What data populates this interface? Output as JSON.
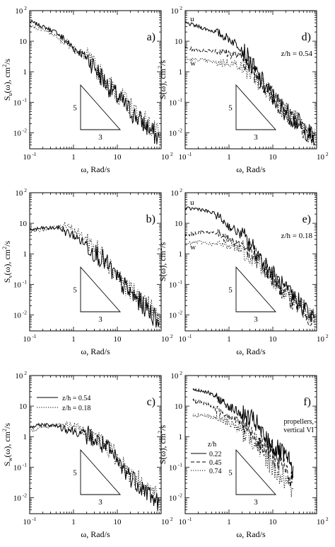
{
  "chart_data": [
    {
      "id": "a",
      "type": "line",
      "panel_label": "a)",
      "ylabel_parts": {
        "base": "S",
        "sub": "u",
        "rest": "(ω),  cm",
        "sup": "2",
        "end": "/s"
      },
      "xlabel": "ω, Rad/s",
      "xscale": "log",
      "yscale": "log",
      "xlim": [
        0.1,
        100
      ],
      "ylim": [
        0.003,
        100
      ],
      "x_ticks": [
        "10⁻¹",
        "1",
        "10",
        "10²"
      ],
      "y_ticks": [
        "10²",
        "10",
        "1",
        "10⁻¹",
        "10⁻²"
      ],
      "triangle": {
        "vertical": "5",
        "horizontal": "3"
      },
      "series": [
        {
          "style": "solid",
          "x": [
            0.1,
            0.2,
            0.4,
            1,
            2,
            3,
            5,
            10,
            20,
            50,
            90
          ],
          "y": [
            45,
            30,
            20,
            6,
            3,
            1.5,
            0.5,
            0.15,
            0.05,
            0.015,
            0.006
          ]
        },
        {
          "style": "dotted",
          "x": [
            0.1,
            0.2,
            0.4,
            1,
            2,
            3,
            5,
            10,
            20,
            50,
            90
          ],
          "y": [
            30,
            25,
            15,
            6,
            3,
            1.5,
            0.6,
            0.2,
            0.07,
            0.02,
            0.008
          ]
        }
      ]
    },
    {
      "id": "d",
      "type": "line",
      "panel_label": "d)",
      "ylabel_parts": {
        "base": "S",
        "sub": "",
        "rest": "(ω),  cm",
        "sup": "2",
        "end": "/s"
      },
      "xlabel": "ω, Rad/s",
      "xscale": "log",
      "yscale": "log",
      "xlim": [
        0.1,
        100
      ],
      "ylim": [
        0.003,
        100
      ],
      "x_ticks": [
        "10⁻¹",
        "1",
        "10",
        "10²"
      ],
      "y_ticks": [
        "10²",
        "10",
        "1",
        "10⁻¹",
        "10⁻²"
      ],
      "triangle": {
        "vertical": "5",
        "horizontal": "3"
      },
      "annotation": "z/h  =  0.54",
      "curve_labels": [
        {
          "text": "u",
          "x": 0.13,
          "y": 45
        },
        {
          "text": "v",
          "x": 0.6,
          "y": 4
        },
        {
          "text": "w",
          "x": 0.13,
          "y": 1.6
        }
      ],
      "series": [
        {
          "style": "solid",
          "x": [
            0.1,
            0.2,
            0.5,
            1,
            2,
            3,
            5,
            10,
            20,
            50,
            90
          ],
          "y": [
            40,
            30,
            20,
            12,
            6,
            2,
            0.6,
            0.15,
            0.05,
            0.015,
            0.006
          ]
        },
        {
          "style": "dashed",
          "x": [
            0.1,
            0.2,
            0.5,
            1,
            2,
            3,
            5,
            10,
            20,
            50,
            90
          ],
          "y": [
            6,
            5,
            5,
            4,
            3,
            1.5,
            0.6,
            0.15,
            0.05,
            0.015,
            0.006
          ]
        },
        {
          "style": "dotted",
          "x": [
            0.1,
            0.2,
            0.5,
            1,
            2,
            3,
            5,
            10,
            20,
            50,
            90
          ],
          "y": [
            2.5,
            2.5,
            2,
            2,
            1.5,
            1,
            0.5,
            0.15,
            0.05,
            0.015,
            0.006
          ]
        }
      ]
    },
    {
      "id": "b",
      "type": "line",
      "panel_label": "b)",
      "ylabel_parts": {
        "base": "S",
        "sub": "v",
        "rest": "(ω),  cm",
        "sup": "2",
        "end": "/s"
      },
      "xlabel": "ω, Rad/s",
      "xscale": "log",
      "yscale": "log",
      "xlim": [
        0.1,
        100
      ],
      "ylim": [
        0.003,
        100
      ],
      "x_ticks": [
        "10⁻¹",
        "1",
        "10",
        "10²"
      ],
      "y_ticks": [
        "10²",
        "10",
        "1",
        "10⁻¹",
        "10⁻²"
      ],
      "triangle": {
        "vertical": "5",
        "horizontal": "3"
      },
      "series": [
        {
          "style": "solid",
          "x": [
            0.1,
            0.2,
            0.5,
            0.7,
            1,
            2,
            5,
            10,
            20,
            50,
            90
          ],
          "y": [
            6,
            7,
            7,
            5,
            4,
            2,
            0.6,
            0.15,
            0.05,
            0.015,
            0.006
          ]
        },
        {
          "style": "dotted",
          "x": [
            0.1,
            0.2,
            0.5,
            0.7,
            1,
            2,
            5,
            10,
            20,
            50,
            90
          ],
          "y": [
            6,
            6,
            8,
            10,
            6,
            3,
            0.8,
            0.2,
            0.06,
            0.02,
            0.008
          ]
        }
      ]
    },
    {
      "id": "e",
      "type": "line",
      "panel_label": "e)",
      "ylabel_parts": {
        "base": "S",
        "sub": "",
        "rest": "(ω),  cm",
        "sup": "2",
        "end": "/s"
      },
      "xlabel": "ω, Rad/s",
      "xscale": "log",
      "yscale": "log",
      "xlim": [
        0.1,
        100
      ],
      "ylim": [
        0.003,
        100
      ],
      "x_ticks": [
        "10⁻¹",
        "1",
        "10",
        "10²"
      ],
      "y_ticks": [
        "10²",
        "10",
        "1",
        "10⁻¹",
        "10⁻²"
      ],
      "triangle": {
        "vertical": "5",
        "horizontal": "3"
      },
      "annotation": "z/h  =  0.18",
      "curve_labels": [
        {
          "text": "u",
          "x": 0.13,
          "y": 40
        },
        {
          "text": "v",
          "x": 0.7,
          "y": 3.5
        },
        {
          "text": "w",
          "x": 0.13,
          "y": 1.4
        }
      ],
      "series": [
        {
          "style": "solid",
          "x": [
            0.1,
            0.2,
            0.5,
            1,
            2,
            5,
            10,
            20,
            50,
            90
          ],
          "y": [
            30,
            30,
            20,
            8,
            4,
            0.8,
            0.2,
            0.06,
            0.02,
            0.006
          ]
        },
        {
          "style": "dashed",
          "x": [
            0.1,
            0.2,
            0.5,
            1,
            2,
            5,
            10,
            20,
            50,
            90
          ],
          "y": [
            4,
            5,
            5,
            3,
            2,
            0.6,
            0.15,
            0.05,
            0.015,
            0.006
          ]
        },
        {
          "style": "dotted",
          "x": [
            0.1,
            0.2,
            0.5,
            1,
            2,
            5,
            10,
            20,
            50,
            90
          ],
          "y": [
            2,
            2.5,
            2,
            2,
            1.5,
            0.5,
            0.15,
            0.05,
            0.015,
            0.006
          ]
        }
      ]
    },
    {
      "id": "c",
      "type": "line",
      "panel_label": "c)",
      "ylabel_parts": {
        "base": "S",
        "sub": "w",
        "rest": "(ω),  cm",
        "sup": "2",
        "end": "/s"
      },
      "xlabel": "ω, Rad/s",
      "xscale": "log",
      "yscale": "log",
      "xlim": [
        0.1,
        100
      ],
      "ylim": [
        0.003,
        100
      ],
      "x_ticks": [
        "10⁻¹",
        "1",
        "10",
        "10²"
      ],
      "y_ticks": [
        "10²",
        "10",
        "1",
        "10⁻¹",
        "10⁻²"
      ],
      "triangle": {
        "vertical": "5",
        "horizontal": "3"
      },
      "legend": [
        {
          "label": "z/h  =  0.54",
          "style": "solid"
        },
        {
          "label": "z/h  =  0.18",
          "style": "dotted"
        }
      ],
      "series": [
        {
          "style": "solid",
          "x": [
            0.1,
            0.2,
            0.5,
            1,
            2,
            3,
            5,
            10,
            20,
            50,
            90
          ],
          "y": [
            2,
            2.5,
            2.2,
            1.5,
            1.2,
            0.8,
            0.5,
            0.15,
            0.05,
            0.015,
            0.006
          ]
        },
        {
          "style": "dotted",
          "x": [
            0.1,
            0.2,
            0.5,
            1,
            2,
            3,
            5,
            10,
            20,
            50,
            90
          ],
          "y": [
            1.5,
            2,
            2.5,
            2.2,
            1.5,
            1,
            0.6,
            0.2,
            0.06,
            0.02,
            0.008
          ]
        }
      ]
    },
    {
      "id": "f",
      "type": "line",
      "panel_label": "f)",
      "ylabel_parts": {
        "base": "S",
        "sub": "",
        "rest": "(ω),  cm",
        "sup": "2",
        "end": "/s"
      },
      "xlabel": "ω, Rad/s",
      "xscale": "log",
      "yscale": "log",
      "xlim": [
        0.1,
        100
      ],
      "ylim": [
        0.003,
        100
      ],
      "x_ticks": [
        "10⁻¹",
        "1",
        "10",
        "10²"
      ],
      "y_ticks": [
        "10²",
        "10",
        "1",
        "10⁻¹",
        "10⁻²"
      ],
      "triangle": {
        "vertical": "5",
        "horizontal": "3"
      },
      "legend_title": [
        "propellers,",
        "vertical VI"
      ],
      "legend_header": "z/h",
      "legend": [
        {
          "label": "0.22",
          "style": "solid"
        },
        {
          "label": "0.45",
          "style": "dashed"
        },
        {
          "label": "0.74",
          "style": "dotted"
        }
      ],
      "series": [
        {
          "style": "solid",
          "x": [
            0.15,
            0.3,
            0.5,
            1,
            2,
            4,
            6,
            10,
            20,
            30
          ],
          "y": [
            35,
            30,
            20,
            10,
            5,
            3,
            1,
            0.5,
            0.2,
            0.08
          ]
        },
        {
          "style": "dashed",
          "x": [
            0.15,
            0.3,
            0.5,
            1,
            2,
            4,
            6,
            10,
            20,
            30
          ],
          "y": [
            15,
            12,
            8,
            5,
            2.5,
            1,
            0.5,
            0.25,
            0.08,
            0.03
          ]
        },
        {
          "style": "dotted",
          "x": [
            0.15,
            0.3,
            0.5,
            1,
            2,
            4,
            6,
            10,
            20,
            30
          ],
          "y": [
            5,
            5,
            4,
            3,
            1.5,
            0.7,
            0.3,
            0.1,
            0.03,
            0.01
          ]
        }
      ]
    }
  ]
}
